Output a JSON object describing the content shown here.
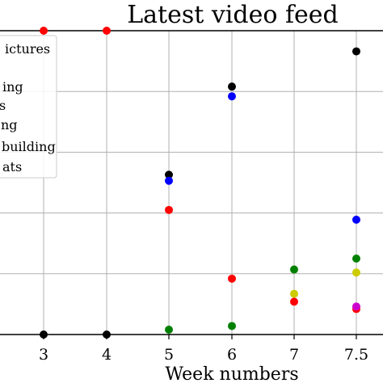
{
  "chart_data": {
    "type": "scatter",
    "title": "Latest video feed",
    "xlabel": "Week numbers",
    "x_categories": [
      "3",
      "4",
      "5",
      "6",
      "7",
      "7.5"
    ],
    "ylim": [
      0,
      5
    ],
    "grid": true,
    "legend_placement": "top-left",
    "legend_entries": [
      "ictures",
      "ing",
      "s",
      "ng",
      "building",
      "ats"
    ],
    "series": [
      {
        "color": "#000000",
        "points": [
          [
            0,
            0
          ],
          [
            1,
            0
          ],
          [
            2,
            2.63
          ],
          [
            3,
            4.08
          ],
          [
            5,
            4.66
          ]
        ]
      },
      {
        "color": "#ff0000",
        "points": [
          [
            0,
            5.0
          ],
          [
            1,
            5.0
          ],
          [
            2,
            2.05
          ],
          [
            3,
            0.92
          ],
          [
            4,
            0.54
          ],
          [
            5,
            0.42
          ]
        ]
      },
      {
        "color": "#0000ff",
        "points": [
          [
            2,
            2.53
          ],
          [
            3,
            3.92
          ],
          [
            5,
            1.89
          ]
        ]
      },
      {
        "color": "#008000",
        "points": [
          [
            2,
            0.08
          ],
          [
            3,
            0.14
          ],
          [
            4,
            1.07
          ],
          [
            5,
            1.25
          ]
        ]
      },
      {
        "color": "#cccc00",
        "points": [
          [
            4,
            0.67
          ],
          [
            5,
            1.02
          ]
        ]
      },
      {
        "color": "#cc00cc",
        "points": [
          [
            5,
            0.46
          ]
        ]
      }
    ]
  }
}
